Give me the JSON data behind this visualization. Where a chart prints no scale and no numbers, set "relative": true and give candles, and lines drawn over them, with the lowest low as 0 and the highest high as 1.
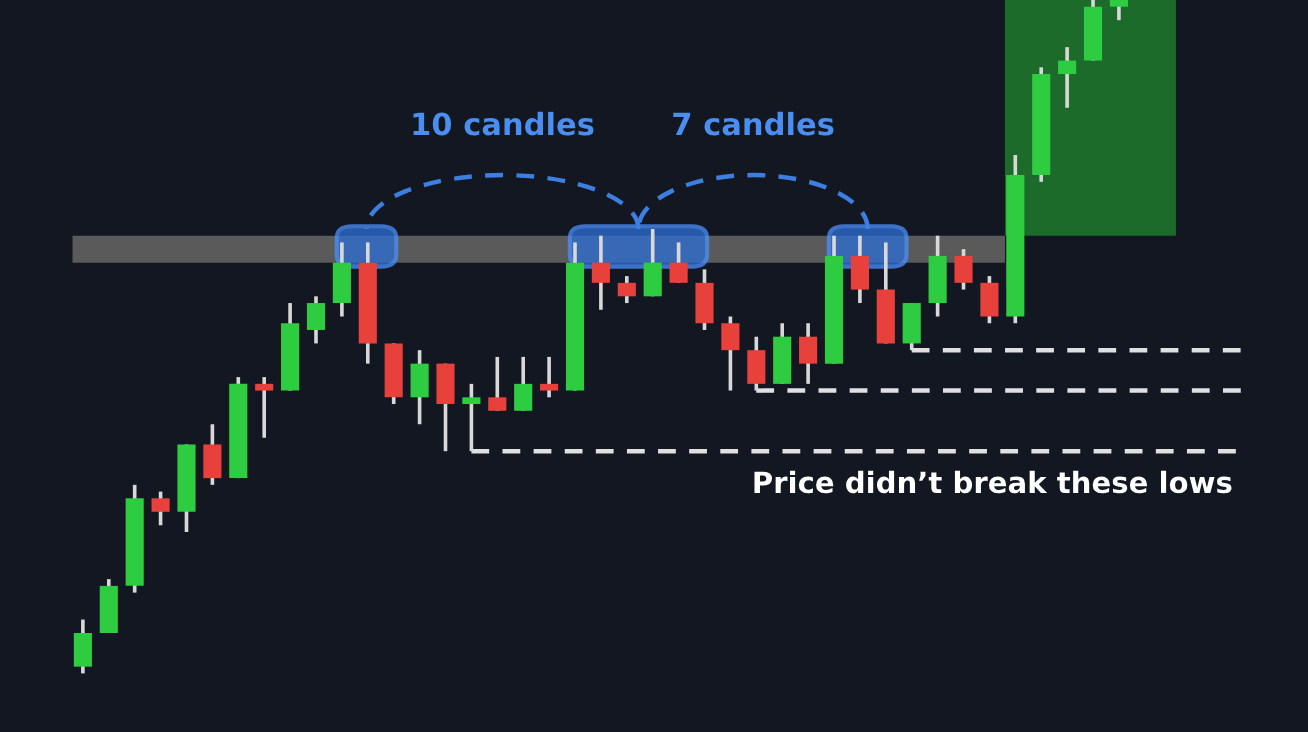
{
  "chart_data": {
    "type": "candlestick",
    "relative": true,
    "categories": [
      null,
      null,
      null,
      null,
      null,
      null,
      null,
      null,
      null,
      null,
      null,
      null,
      null,
      null,
      null,
      null,
      null,
      null,
      null,
      null,
      null,
      null,
      null,
      null,
      null,
      null,
      null,
      null,
      null,
      null,
      null,
      null,
      null,
      null,
      null,
      null,
      null,
      null,
      null,
      null,
      null
    ],
    "ohlc": [
      [
        0.01,
        0.08,
        0,
        0.06
      ],
      [
        0.06,
        0.14,
        0.06,
        0.13
      ],
      [
        0.13,
        0.28,
        0.12,
        0.26
      ],
      [
        0.26,
        0.27,
        0.22,
        0.24
      ],
      [
        0.24,
        0.34,
        0.21,
        0.34
      ],
      [
        0.34,
        0.37,
        0.28,
        0.29
      ],
      [
        0.29,
        0.44,
        0.29,
        0.43
      ],
      [
        0.43,
        0.44,
        0.35,
        0.42
      ],
      [
        0.42,
        0.55,
        0.42,
        0.52
      ],
      [
        0.51,
        0.56,
        0.49,
        0.55
      ],
      [
        0.55,
        0.64,
        0.53,
        0.61
      ],
      [
        0.61,
        0.64,
        0.46,
        0.49
      ],
      [
        0.49,
        0.49,
        0.4,
        0.41
      ],
      [
        0.41,
        0.48,
        0.37,
        0.46
      ],
      [
        0.46,
        0.46,
        0.33,
        0.4
      ],
      [
        0.4,
        0.43,
        0.33,
        0.41
      ],
      [
        0.41,
        0.47,
        0.39,
        0.39
      ],
      [
        0.39,
        0.47,
        0.39,
        0.43
      ],
      [
        0.43,
        0.47,
        0.41,
        0.42
      ],
      [
        0.42,
        0.64,
        0.42,
        0.61
      ],
      [
        0.61,
        0.65,
        0.54,
        0.58
      ],
      [
        0.58,
        0.59,
        0.55,
        0.56
      ],
      [
        0.56,
        0.66,
        0.56,
        0.61
      ],
      [
        0.61,
        0.64,
        0.58,
        0.58
      ],
      [
        0.58,
        0.6,
        0.51,
        0.52
      ],
      [
        0.52,
        0.53,
        0.42,
        0.48
      ],
      [
        0.48,
        0.5,
        0.42,
        0.43
      ],
      [
        0.43,
        0.52,
        0.43,
        0.5
      ],
      [
        0.5,
        0.52,
        0.43,
        0.46
      ],
      [
        0.46,
        0.65,
        0.46,
        0.62
      ],
      [
        0.62,
        0.65,
        0.55,
        0.57
      ],
      [
        0.57,
        0.64,
        0.49,
        0.49
      ],
      [
        0.49,
        0.55,
        0.48,
        0.55
      ],
      [
        0.55,
        0.65,
        0.53,
        0.62
      ],
      [
        0.62,
        0.63,
        0.57,
        0.58
      ],
      [
        0.58,
        0.59,
        0.52,
        0.53
      ],
      [
        0.53,
        0.77,
        0.52,
        0.74
      ],
      [
        0.74,
        0.9,
        0.73,
        0.89
      ],
      [
        0.89,
        0.93,
        0.84,
        0.91
      ],
      [
        0.91,
        1.0,
        0.91,
        0.99
      ],
      [
        0.99,
        1.0,
        0.97,
        1.0
      ]
    ],
    "colors": [
      "#2ecc40",
      "#2ecc40",
      "#2ecc40",
      "#e8403a",
      "#2ecc40",
      "#e8403a",
      "#2ecc40",
      "#e8403a",
      "#2ecc40",
      "#2ecc40",
      "#2ecc40",
      "#e8403a",
      "#e8403a",
      "#2ecc40",
      "#e8403a",
      "#2ecc40",
      "#e8403a",
      "#2ecc40",
      "#e8403a",
      "#2ecc40",
      "#e8403a",
      "#e8403a",
      "#2ecc40",
      "#e8403a",
      "#e8403a",
      "#e8403a",
      "#e8403a",
      "#2ecc40",
      "#e8403a",
      "#2ecc40",
      "#e8403a",
      "#e8403a",
      "#2ecc40",
      "#2ecc40",
      "#e8403a",
      "#e8403a",
      "#2ecc40",
      "#2ecc40",
      "#2ecc40",
      "#2ecc40",
      "#2ecc40"
    ],
    "bands": [
      {
        "axis": "y",
        "from": 0.61,
        "to": 0.65,
        "color": "#5a5a5a"
      },
      {
        "axis": "y",
        "from": 0.65,
        "to": 1.0,
        "color": "#1d6b2a"
      }
    ],
    "ref_lines": [
      {
        "axis": "y",
        "value": 0.33,
        "color": "#e0e0e0",
        "line_style": "dashed"
      },
      {
        "axis": "y",
        "value": 0.42,
        "color": "#e0e0e0",
        "line_style": "dashed"
      },
      {
        "axis": "y",
        "value": 0.48,
        "color": "#e0e0e0",
        "line_style": "dashed"
      }
    ],
    "annotations": [
      "10 candles",
      "7 candles",
      "Price didn’t break these lows"
    ]
  }
}
